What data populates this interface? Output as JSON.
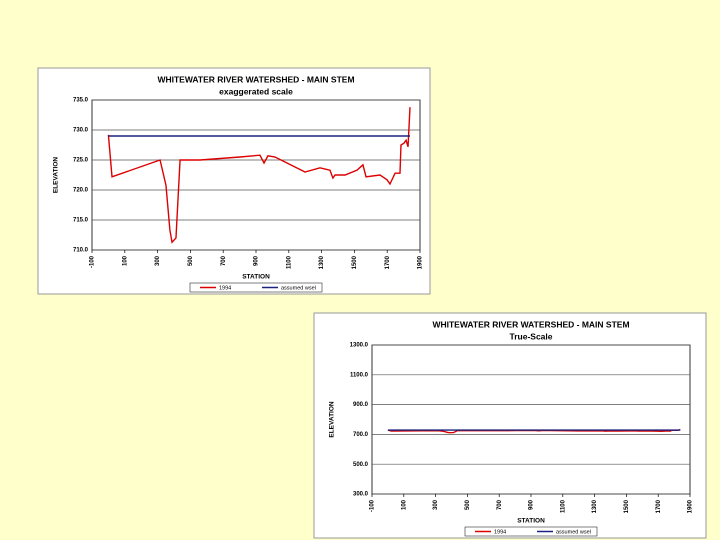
{
  "chart_data": [
    {
      "type": "line",
      "title": "WHITEWATER RIVER WATERSHED   -   MAIN STEM",
      "subtitle": "exaggerated scale",
      "x_label": "STATION",
      "y_label": "ELEVATION",
      "xlim": [
        -100,
        1900
      ],
      "xticks": [
        -100,
        100,
        300,
        500,
        700,
        900,
        1100,
        1300,
        1500,
        1700,
        1900
      ],
      "ylim": [
        710,
        735
      ],
      "yticks": [
        {
          "value": 710,
          "label": "710.0"
        },
        {
          "value": 715,
          "label": "715.0"
        },
        {
          "value": 720,
          "label": "720.0"
        },
        {
          "value": 725,
          "label": "725.0"
        },
        {
          "value": 730,
          "label": "730.0"
        },
        {
          "value": 735,
          "label": "735.0"
        }
      ],
      "grid": true,
      "legend": "bottom",
      "series": [
        {
          "name": "1994",
          "color": "#dd0000",
          "x": [
            0,
            22,
            315,
            351,
            375,
            388,
            412,
            437,
            559,
            802,
            924,
            949,
            973,
            1016,
            1199,
            1290,
            1351,
            1369,
            1382,
            1443,
            1516,
            1552,
            1571,
            1656,
            1699,
            1717,
            1748,
            1778,
            1784,
            1802,
            1815,
            1827,
            1839
          ],
          "values": [
            729.2,
            722.2,
            725,
            720.8,
            713.3,
            711.3,
            712,
            725,
            725,
            725.5,
            725.8,
            724.5,
            725.7,
            725.5,
            723,
            723.7,
            723.3,
            722,
            722.5,
            722.5,
            723.3,
            724.2,
            722.2,
            722.5,
            721.7,
            721,
            722.8,
            722.8,
            727.5,
            727.8,
            728.3,
            727.2,
            733.8
          ]
        },
        {
          "name": "assumed wsel",
          "color": "#1a237e",
          "x": [
            0,
            1839
          ],
          "values": [
            729,
            729
          ]
        }
      ]
    },
    {
      "type": "line",
      "title": "WHITEWATER RIVER WATERSHED   -   MAIN STEM",
      "subtitle": "True-Scale",
      "x_label": "STATION",
      "y_label": "ELEVATION",
      "xlim": [
        -100,
        1900
      ],
      "xticks": [
        -100,
        100,
        300,
        500,
        700,
        900,
        1100,
        1300,
        1500,
        1700,
        1900
      ],
      "ylim": [
        300,
        1300
      ],
      "yticks": [
        {
          "value": 300,
          "label": "300.0"
        },
        {
          "value": 500,
          "label": "500.0"
        },
        {
          "value": 700,
          "label": "700.0"
        },
        {
          "value": 900,
          "label": "900.0"
        },
        {
          "value": 1100,
          "label": "1100.0"
        },
        {
          "value": 1300,
          "label": "1300.0"
        }
      ],
      "grid": true,
      "legend": "bottom",
      "series": [
        {
          "name": "1994",
          "color": "#dd0000",
          "x": [
            0,
            22,
            315,
            351,
            375,
            388,
            412,
            437,
            559,
            802,
            924,
            949,
            973,
            1016,
            1199,
            1290,
            1351,
            1369,
            1382,
            1443,
            1516,
            1552,
            1571,
            1656,
            1699,
            1717,
            1748,
            1778,
            1784,
            1802,
            1815,
            1827,
            1839
          ],
          "values": [
            729.2,
            722.2,
            725,
            720.8,
            713.3,
            711.3,
            712,
            725,
            725,
            725.5,
            725.8,
            724.5,
            725.7,
            725.5,
            723,
            723.7,
            723.3,
            722,
            722.5,
            722.5,
            723.3,
            724.2,
            722.2,
            722.5,
            721.7,
            721,
            722.8,
            722.8,
            727.5,
            727.8,
            728.3,
            727.2,
            733.8
          ]
        },
        {
          "name": "assumed wsel",
          "color": "#1a237e",
          "x": [
            0,
            1839
          ],
          "values": [
            729,
            729
          ]
        }
      ]
    }
  ]
}
